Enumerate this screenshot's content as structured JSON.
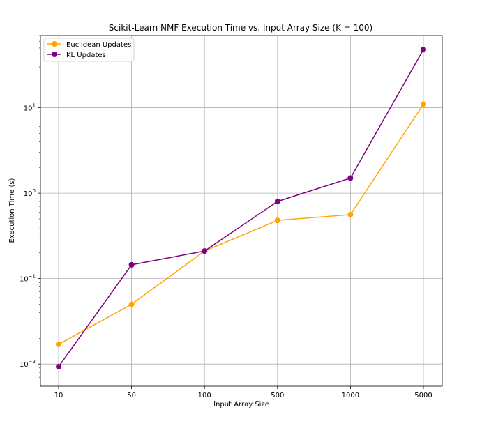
{
  "chart_data": {
    "type": "line",
    "title": "Scikit-Learn NMF Execution Time vs. Input Array Size (K = 100)",
    "xlabel": "Input Array Size",
    "ylabel": "Execution Time (s)",
    "categories": [
      "10",
      "50",
      "100",
      "500",
      "1000",
      "5000"
    ],
    "y_scale": "log",
    "ylim": [
      0.0055,
      70
    ],
    "y_ticks": [
      {
        "value": 0.01,
        "base": "10",
        "exp": "−2"
      },
      {
        "value": 0.1,
        "base": "10",
        "exp": "−1"
      },
      {
        "value": 1,
        "base": "10",
        "exp": "0"
      },
      {
        "value": 10,
        "base": "10",
        "exp": "1"
      }
    ],
    "grid": true,
    "legend_position": "top-left",
    "series": [
      {
        "name": "Euclidean Updates",
        "color": "#FFA500",
        "values": [
          0.017,
          0.05,
          0.21,
          0.48,
          0.56,
          11
        ]
      },
      {
        "name": "KL Updates",
        "color": "#800080",
        "values": [
          0.0093,
          0.145,
          0.21,
          0.8,
          1.5,
          48
        ]
      }
    ]
  }
}
